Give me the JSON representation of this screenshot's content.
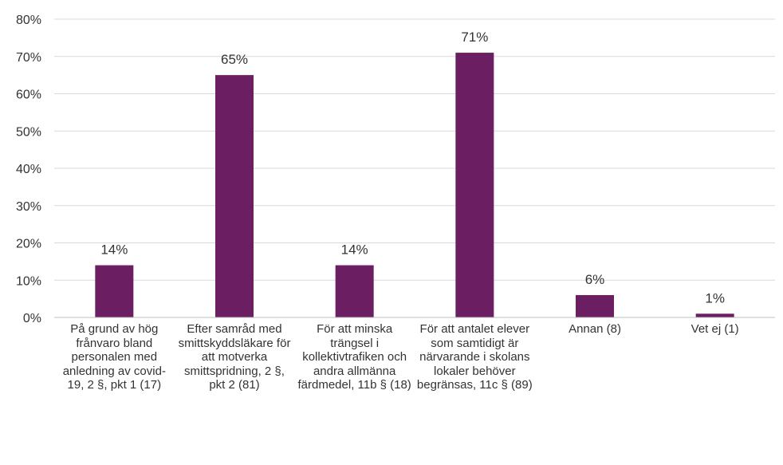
{
  "chart_data": {
    "type": "bar",
    "categories": [
      "På grund av hög frånvaro bland personalen med anledning av covid-19, 2 §, pkt 1 (17)",
      "Efter samråd med smittskyddsläkare för att motverka smittspridning, 2 §, pkt 2 (81)",
      "För att minska trängsel i kollektivtrafiken och andra allmänna färdmedel, 11b § (18)",
      "För att antalet elever som samtidigt är närvarande i skolans lokaler behöver begränsas, 11c § (89)",
      "Annan (8)",
      "Vet ej (1)"
    ],
    "values": [
      14,
      65,
      14,
      71,
      6,
      1
    ],
    "data_labels": [
      "14%",
      "65%",
      "14%",
      "71%",
      "6%",
      "1%"
    ],
    "ylim": [
      0,
      80
    ],
    "yticks": [
      0,
      10,
      20,
      30,
      40,
      50,
      60,
      70,
      80
    ],
    "ytick_labels": [
      "0%",
      "10%",
      "20%",
      "30%",
      "40%",
      "50%",
      "60%",
      "70%",
      "80%"
    ],
    "grid": true,
    "bar_color": "#6b1f62"
  }
}
